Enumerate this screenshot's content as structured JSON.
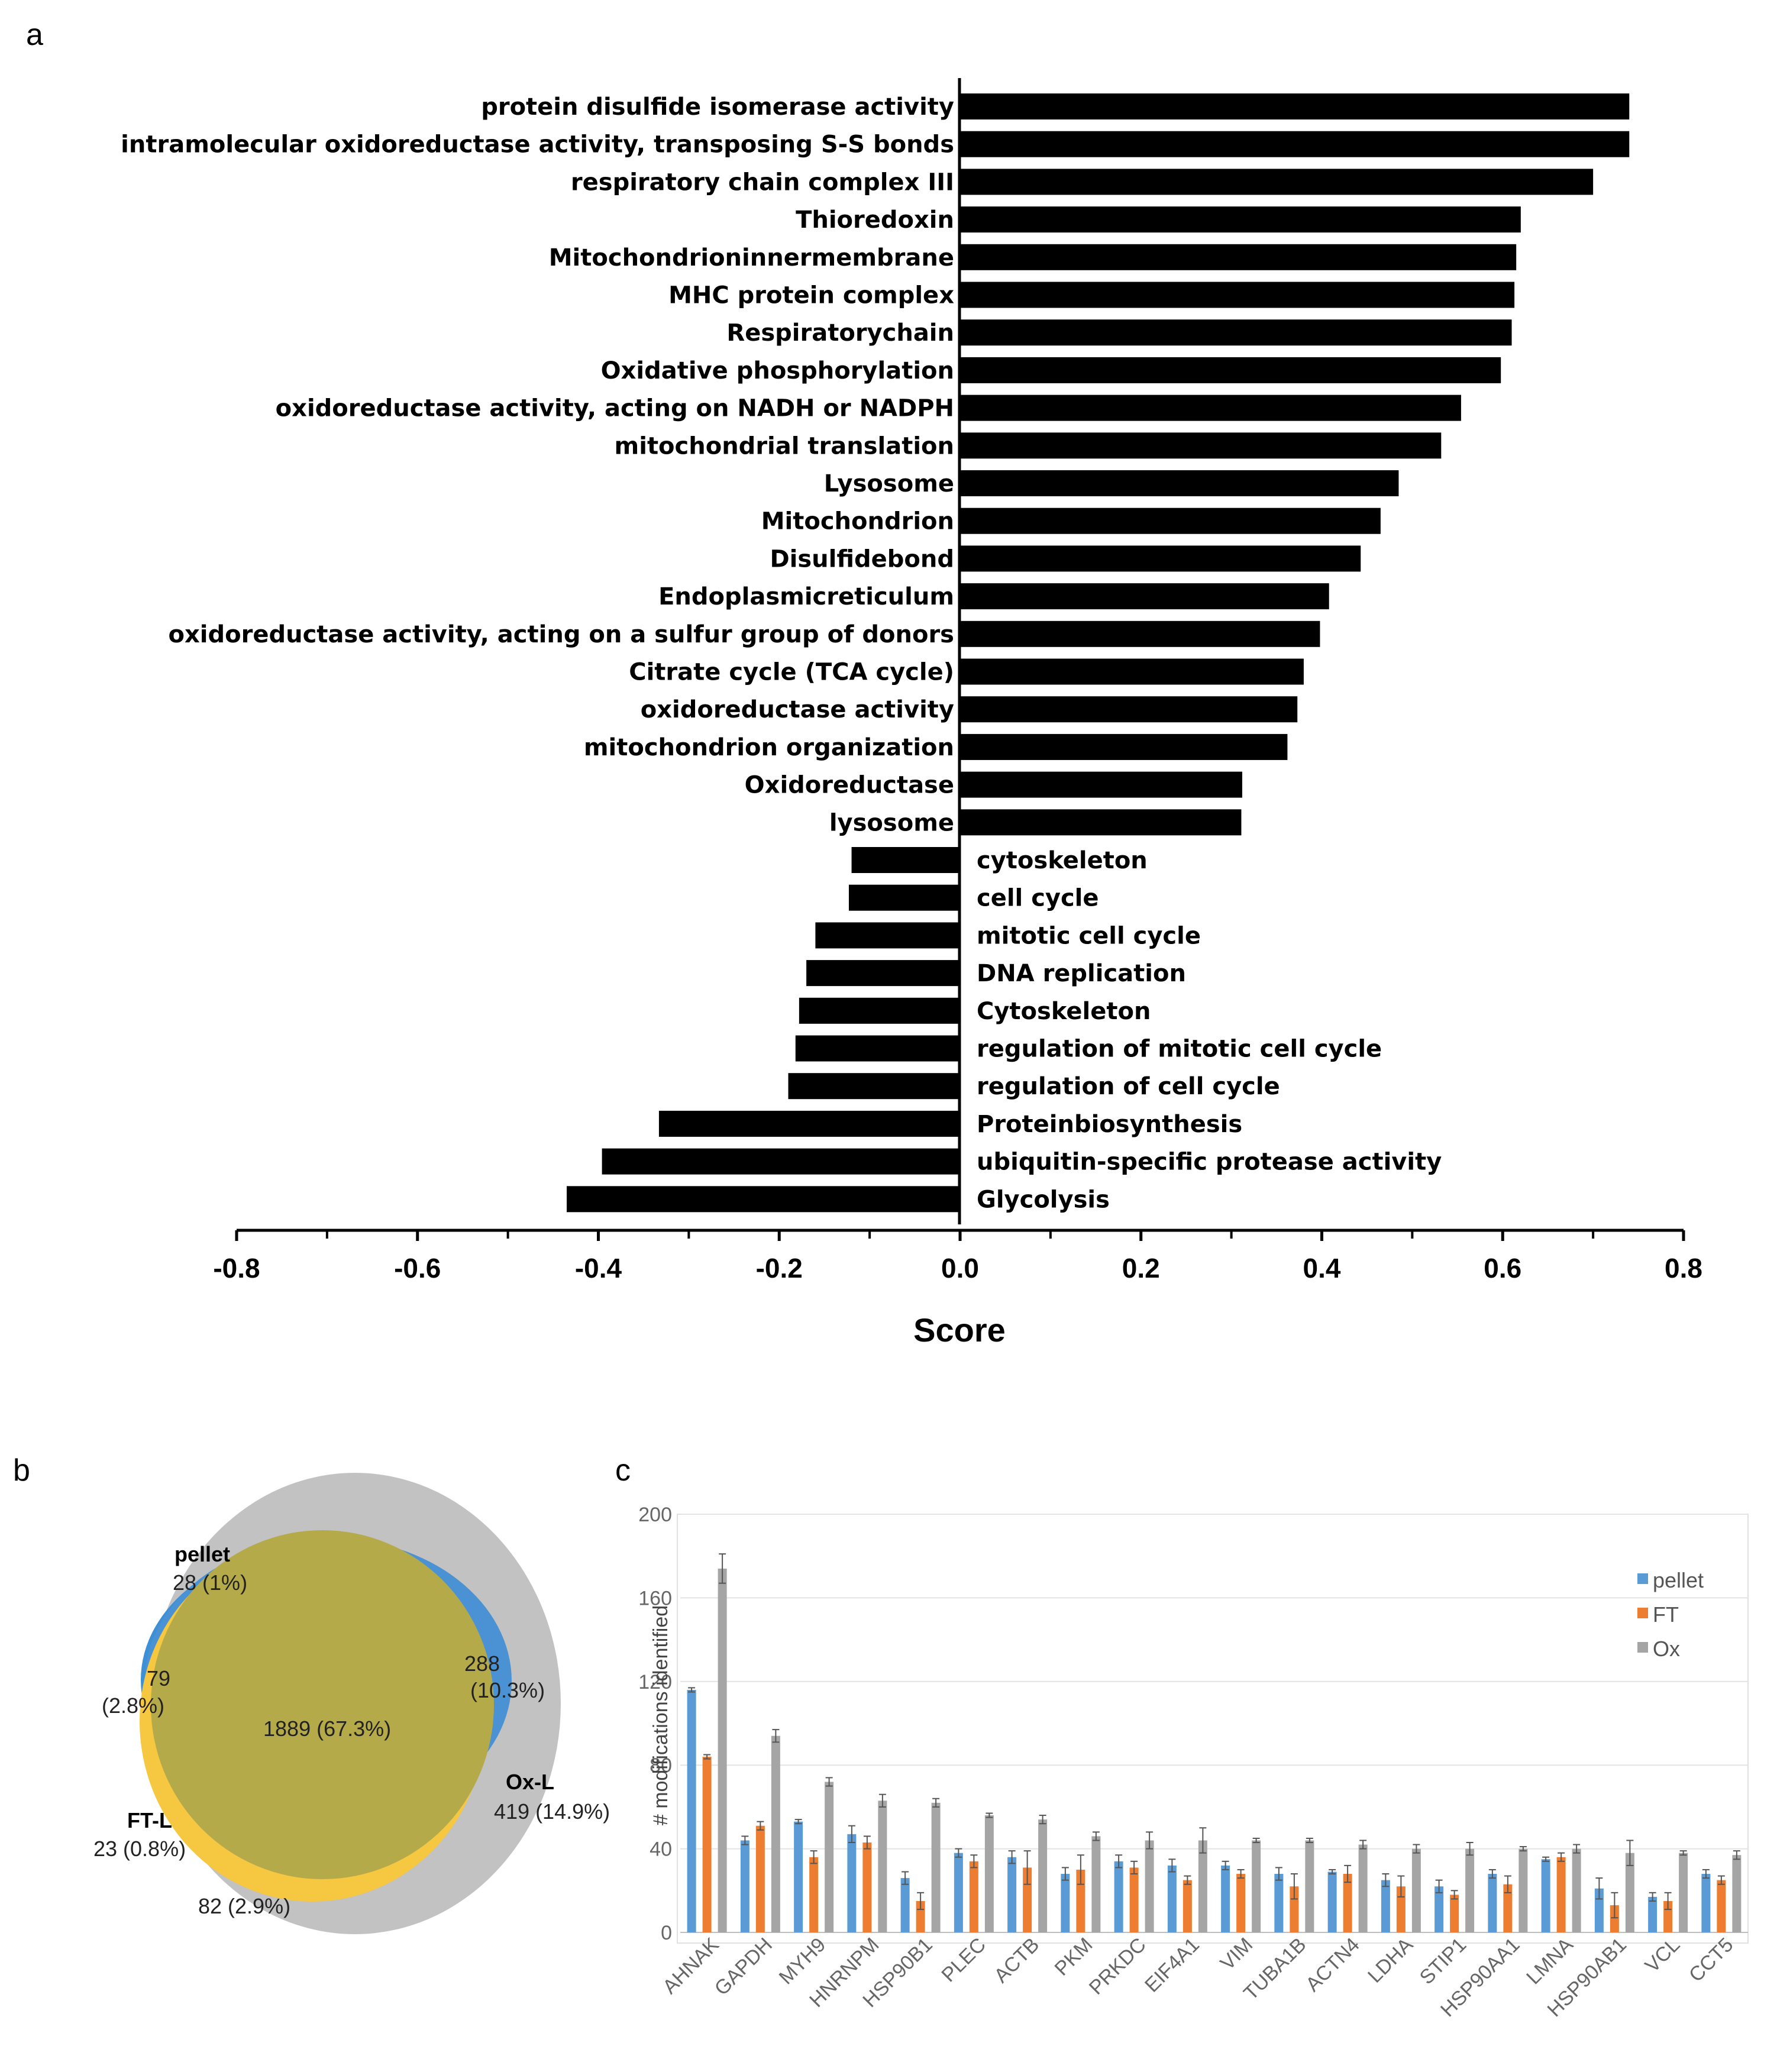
{
  "panels": {
    "a": "a",
    "b": "b",
    "c": "c"
  },
  "chart_data": [
    {
      "type": "bar",
      "orientation": "horizontal",
      "panel": "a",
      "title": "",
      "xlabel": "Score",
      "ylabel": "",
      "xlim": [
        -0.8,
        0.8
      ],
      "xticks": [
        "-0.8",
        "-0.6",
        "-0.4",
        "-0.2",
        "0.0",
        "0.2",
        "0.4",
        "0.6",
        "0.8"
      ],
      "categories": [
        "protein disulfide isomerase activity",
        "intramolecular oxidoreductase activity, transposing S-S bonds",
        "respiratory chain complex III",
        "Thioredoxin",
        "Mitochondrioninnermembrane",
        "MHC protein complex",
        "Respiratorychain",
        "Oxidative phosphorylation",
        "oxidoreductase activity, acting on NADH or NADPH",
        "mitochondrial translation",
        "Lysosome",
        "Mitochondrion",
        "Disulfidebond",
        "Endoplasmicreticulum",
        "oxidoreductase activity, acting on a sulfur group of donors",
        "Citrate cycle (TCA cycle)",
        "oxidoreductase activity",
        "mitochondrion organization",
        "Oxidoreductase",
        "lysosome",
        "cytoskeleton",
        "cell cycle",
        "mitotic cell cycle",
        "DNA replication",
        "Cytoskeleton",
        "regulation of mitotic cell cycle",
        "regulation of cell cycle",
        "Proteinbiosynthesis",
        "ubiquitin-specific protease activity",
        "Glycolysis"
      ],
      "values": [
        0.74,
        0.74,
        0.7,
        0.62,
        0.615,
        0.613,
        0.61,
        0.598,
        0.554,
        0.532,
        0.485,
        0.465,
        0.443,
        0.408,
        0.398,
        0.38,
        0.373,
        0.362,
        0.312,
        0.311,
        -0.12,
        -0.123,
        -0.16,
        -0.17,
        -0.178,
        -0.182,
        -0.19,
        -0.333,
        -0.396,
        -0.435
      ]
    },
    {
      "type": "venn",
      "panel": "b",
      "sets": [
        "pellet",
        "FT-L",
        "Ox-L"
      ],
      "regions": [
        {
          "label": "pellet",
          "value": "28 (1%)"
        },
        {
          "label": "",
          "value": "288"
        },
        {
          "label": "",
          "value": "(10.3%)"
        },
        {
          "label": "",
          "value": "79"
        },
        {
          "label": "",
          "value": "(2.8%)"
        },
        {
          "label": "",
          "value": "1889 (67.3%)"
        },
        {
          "label": "Ox-L",
          "value": "419 (14.9%)"
        },
        {
          "label": "FT-L",
          "value": "23 (0.8%)"
        },
        {
          "label": "",
          "value": "82 (2.9%)"
        }
      ],
      "colors": {
        "pellet": "#3d8fd6",
        "FT-L": "#f5c842",
        "Ox-L": "#c7c7c7",
        "overlap": "#b5aa4a"
      }
    },
    {
      "type": "bar",
      "panel": "c",
      "title": "",
      "xlabel": "",
      "ylabel": "# modifications identified",
      "ylim": [
        0,
        200
      ],
      "yticks": [
        "0",
        "40",
        "80",
        "120",
        "160",
        "200"
      ],
      "categories": [
        "AHNAK",
        "GAPDH",
        "MYH9",
        "HNRNPM",
        "HSP90B1",
        "PLEC",
        "ACTB",
        "PKM",
        "PRKDC",
        "EIF4A1",
        "VIM",
        "TUBA1B",
        "ACTN4",
        "LDHA",
        "STIP1",
        "HSP90AA1",
        "LMNA",
        "HSP90AB1",
        "VCL",
        "CCT5"
      ],
      "series": [
        {
          "name": "pellet",
          "color": "#5b9bd5",
          "values": [
            116,
            44,
            53,
            47,
            26,
            38,
            36,
            28,
            34,
            32,
            32,
            28,
            29,
            25,
            22,
            28,
            35,
            21,
            17,
            28
          ],
          "errors": [
            1,
            2,
            1,
            4,
            3,
            2,
            3,
            3,
            3,
            3,
            2,
            3,
            1,
            3,
            3,
            2,
            1,
            5,
            2,
            2
          ]
        },
        {
          "name": "FT",
          "color": "#ed7d31",
          "values": [
            84,
            51,
            36,
            43,
            15,
            34,
            31,
            30,
            31,
            25,
            28,
            22,
            28,
            22,
            18,
            23,
            36,
            13,
            15,
            25
          ],
          "errors": [
            1,
            2,
            3,
            3,
            4,
            3,
            8,
            7,
            3,
            2,
            2,
            6,
            4,
            5,
            2,
            4,
            2,
            6,
            4,
            2
          ]
        },
        {
          "name": "Ox",
          "color": "#a5a5a5",
          "values": [
            174,
            94,
            72,
            63,
            62,
            56,
            54,
            46,
            44,
            44,
            44,
            44,
            42,
            40,
            40,
            40,
            40,
            38,
            38,
            37
          ],
          "errors": [
            7,
            3,
            2,
            3,
            2,
            1,
            2,
            2,
            4,
            6,
            1,
            1,
            2,
            2,
            3,
            1,
            2,
            6,
            1,
            2
          ]
        }
      ],
      "legend": [
        "pellet",
        "FT",
        "Ox"
      ]
    }
  ]
}
